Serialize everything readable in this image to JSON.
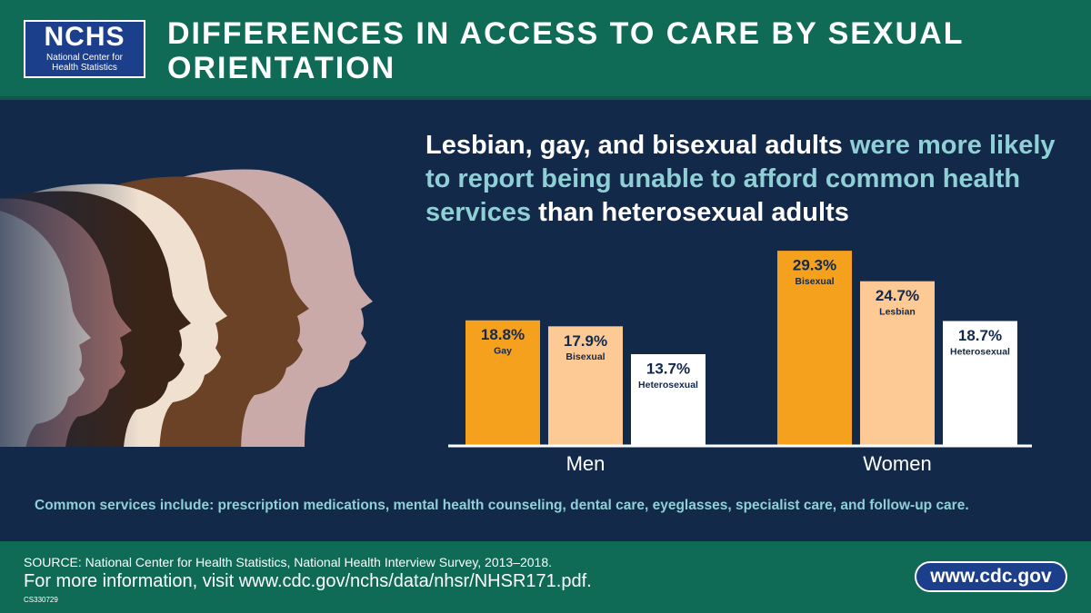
{
  "header": {
    "logo_abbr": "NCHS",
    "logo_name": "National Center for Health Statistics",
    "title": "DIFFERENCES IN ACCESS TO CARE BY SEXUAL ORIENTATION"
  },
  "headline": {
    "parts": [
      "Lesbian, gay, and bisexual adults ",
      "were more likely to report being unable to afford common health services",
      " than heterosexual adults"
    ]
  },
  "chart_data": {
    "type": "bar",
    "colors": [
      "#f6a11e",
      "#fdc995",
      "#ffffff"
    ],
    "groups": [
      {
        "name": "Men",
        "labels": [
          "Gay",
          "Bisexual",
          "Heterosexual"
        ],
        "values": [
          18.8,
          17.9,
          13.7
        ],
        "value_labels": [
          "18.8%",
          "17.9%",
          "13.7%"
        ]
      },
      {
        "name": "Women",
        "labels": [
          "Bisexual",
          "Lesbian",
          "Heterosexual"
        ],
        "values": [
          29.3,
          24.7,
          18.7
        ],
        "value_labels": [
          "29.3%",
          "24.7%",
          "18.7%"
        ]
      }
    ]
  },
  "note": "Common services include: prescription medications, mental health counseling, dental care, eyeglasses, specialist care, and follow-up care.",
  "footer": {
    "source": "SOURCE: National Center for Health Statistics, National Health Interview Survey, 2013–2018.",
    "info": "For more information, visit www.cdc.gov/nchs/data/nhsr/NHSR171.pdf.",
    "code": "CS330729",
    "url": "www.cdc.gov"
  }
}
